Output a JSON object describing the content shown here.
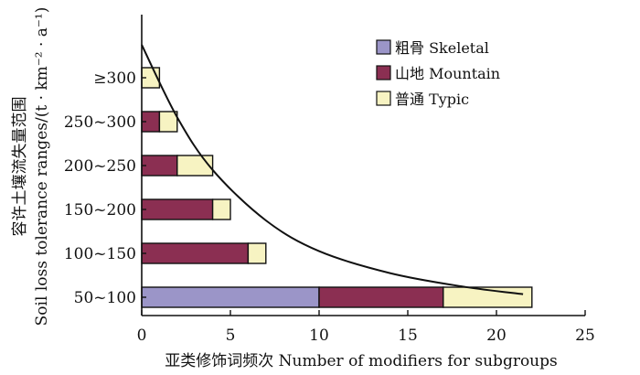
{
  "chart_data": {
    "type": "bar",
    "orientation": "horizontal",
    "stacked": true,
    "categories": [
      "50~100",
      "100~150",
      "150~200",
      "200~250",
      "250~300",
      "≥300"
    ],
    "series": [
      {
        "name": "粗骨 Skeletal",
        "color": "#9b95c8",
        "values": [
          10,
          0,
          0,
          0,
          0,
          0
        ]
      },
      {
        "name": "山地 Mountain",
        "color": "#8b2f52",
        "values": [
          7,
          6,
          4,
          2,
          1,
          0
        ]
      },
      {
        "name": "普通 Typic",
        "color": "#f7f3c2",
        "values": [
          5,
          1,
          1,
          2,
          1,
          1
        ]
      }
    ],
    "xlim": [
      0,
      25
    ],
    "xticks": [
      0,
      5,
      10,
      15,
      20,
      25
    ],
    "xlabel": "亚类修饰词频次 Number of modifiers for subgroups",
    "ylabel_line1": "容许土壤流失量范围",
    "ylabel_line2": "Soil loss tolerance ranges/(t · km⁻² · a⁻¹)",
    "grid": false,
    "legend_position": "right",
    "trend_curve": [
      [
        0,
        5.75
      ],
      [
        2,
        4.1
      ],
      [
        4,
        2.9
      ],
      [
        7,
        1.75
      ],
      [
        10,
        1.05
      ],
      [
        14,
        0.55
      ],
      [
        18,
        0.25
      ],
      [
        21.5,
        0.07
      ]
    ]
  }
}
